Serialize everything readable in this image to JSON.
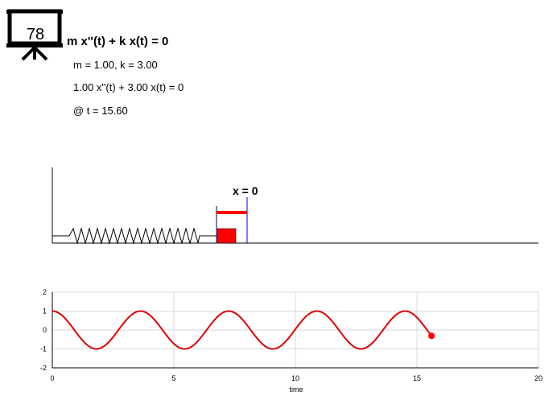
{
  "badge": {
    "number": "78",
    "icon": "presentation-board-icon"
  },
  "equation": "m x''(t) + k x(t) = 0",
  "params_line": "m = 1.00, k = 3.00",
  "substituted_equation": "1.00 x''(t) + 3.00 x(t) = 0",
  "time_label": "@ t = 15.60",
  "spring": {
    "position_label": "x = 0",
    "mass": 1.0,
    "k": 3.0,
    "t": 15.6,
    "displacement": -0.31
  },
  "chart_data": {
    "type": "line",
    "xlabel": "time",
    "ylabel": "",
    "xlim": [
      0,
      20
    ],
    "ylim": [
      -2,
      2
    ],
    "xticks": [
      0,
      5,
      10,
      15,
      20
    ],
    "yticks": [
      -2,
      -1,
      0,
      1,
      2
    ],
    "grid": true,
    "series": [
      {
        "function": "x(t) = cos(sqrt(k/m) t)",
        "t_start": 0,
        "t_end": 15.6,
        "color": "#dd0000"
      }
    ],
    "current_point": {
      "x": 15.6,
      "y": -0.31
    }
  },
  "colors": {
    "accent": "#ff0000",
    "curve": "#dd0000",
    "equilibrium": "#0000cc",
    "grid": "#d8d8d8"
  }
}
